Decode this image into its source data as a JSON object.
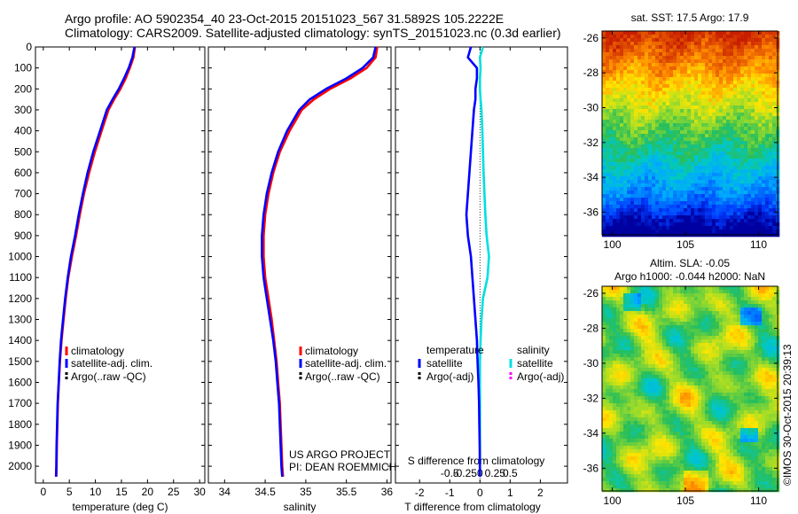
{
  "header": {
    "line1": "Argo profile: AO 5902354_40 23-Oct-2015 20151023_567 31.5892S 105.2222E",
    "line2": "Climatology: CARS2009. Satellite-adjusted climatology: synTS_20151023.nc (0.3d earlier)"
  },
  "colors": {
    "climatology": "#ff0000",
    "satellite": "#0000ff",
    "argo": "#000000",
    "satellite_salinity": "#00e0e0",
    "argo_salinity": "#ff00ff"
  },
  "chart_data": [
    {
      "type": "line",
      "id": "temperature",
      "xlabel": "temperature (deg C)",
      "xlim": [
        -1.5,
        31
      ],
      "ylim": [
        0,
        2080
      ],
      "y_inverted": true,
      "xticks": [
        0,
        5,
        10,
        15,
        20,
        25,
        30
      ],
      "yticks": [
        0,
        100,
        200,
        300,
        400,
        500,
        600,
        700,
        800,
        900,
        1000,
        1100,
        1200,
        1300,
        1400,
        1500,
        1600,
        1700,
        1800,
        1900,
        2000
      ],
      "legend": [
        "climatology",
        "satellite-adj. clim.",
        "Argo(..raw -QC)"
      ],
      "series": [
        {
          "name": "climatology",
          "color": "#ff0000",
          "x": [
            17.6,
            17.3,
            16.6,
            15.8,
            14.8,
            13.6,
            12.5,
            11.2,
            9.9,
            8.8,
            7.8,
            7.0,
            6.3,
            5.5,
            4.8,
            4.3,
            3.9,
            3.5,
            3.2,
            3.0,
            2.8,
            2.7,
            2.6,
            2.55,
            2.5
          ],
          "y": [
            0,
            50,
            100,
            150,
            200,
            250,
            300,
            400,
            500,
            600,
            700,
            800,
            900,
            1000,
            1100,
            1200,
            1300,
            1400,
            1500,
            1600,
            1700,
            1800,
            1900,
            2000,
            2050
          ]
        },
        {
          "name": "satellite-adj. clim.",
          "color": "#0000ff",
          "x": [
            17.5,
            17.1,
            16.4,
            15.5,
            14.5,
            13.3,
            12.2,
            10.9,
            9.6,
            8.5,
            7.6,
            6.8,
            6.1,
            5.3,
            4.7,
            4.2,
            3.8,
            3.4,
            3.15,
            2.95,
            2.75,
            2.65,
            2.55,
            2.5,
            2.45
          ],
          "y": [
            0,
            50,
            100,
            150,
            200,
            250,
            300,
            400,
            500,
            600,
            700,
            800,
            900,
            1000,
            1100,
            1200,
            1300,
            1400,
            1500,
            1600,
            1700,
            1800,
            1900,
            2000,
            2050
          ]
        }
      ]
    },
    {
      "type": "line",
      "id": "salinity",
      "xlabel": "salinity",
      "xlim": [
        33.8,
        36.05
      ],
      "ylim": [
        0,
        2080
      ],
      "y_inverted": true,
      "xticks": [
        34,
        34.5,
        35,
        35.5,
        36
      ],
      "legend": [
        "climatology",
        "satellite-adj. clim.",
        "Argo(..raw -QC)"
      ],
      "annotations": [
        "US ARGO PROJECT",
        "PI: DEAN ROEMMICH"
      ],
      "series": [
        {
          "name": "climatology",
          "color": "#ff0000",
          "x": [
            35.88,
            35.86,
            35.75,
            35.55,
            35.3,
            35.1,
            34.95,
            34.8,
            34.68,
            34.6,
            34.54,
            34.5,
            34.48,
            34.48,
            34.5,
            34.54,
            34.58,
            34.61,
            34.64,
            34.66,
            34.68,
            34.69,
            34.7,
            34.71,
            34.72
          ],
          "y": [
            0,
            50,
            100,
            150,
            200,
            250,
            300,
            400,
            500,
            600,
            700,
            800,
            900,
            1000,
            1100,
            1200,
            1300,
            1400,
            1500,
            1600,
            1700,
            1800,
            1900,
            2000,
            2050
          ]
        },
        {
          "name": "satellite-adj. clim.",
          "color": "#0000ff",
          "x": [
            35.86,
            35.83,
            35.7,
            35.5,
            35.25,
            35.05,
            34.92,
            34.77,
            34.66,
            34.58,
            34.52,
            34.48,
            34.46,
            34.46,
            34.48,
            34.52,
            34.56,
            34.6,
            34.63,
            34.65,
            34.67,
            34.68,
            34.69,
            34.7,
            34.71
          ],
          "y": [
            0,
            50,
            100,
            150,
            200,
            250,
            300,
            400,
            500,
            600,
            700,
            800,
            900,
            1000,
            1100,
            1200,
            1300,
            1400,
            1500,
            1600,
            1700,
            1800,
            1900,
            2000,
            2050
          ]
        }
      ]
    },
    {
      "type": "line",
      "id": "difference",
      "xlabel": "T difference from climatology",
      "xlabel_top": "S difference from climatology",
      "xlim": [
        -2.8,
        2.9
      ],
      "ylim": [
        0,
        2080
      ],
      "y_inverted": true,
      "xticks": [
        -2,
        -1,
        0,
        1,
        2
      ],
      "sticks": [
        -0.5,
        -0.25,
        0,
        0.25,
        0.5
      ],
      "stick_labels": [
        "-0.5",
        "-0.25",
        "0",
        "0.25",
        "0.5"
      ],
      "legend_headers": [
        "temperature",
        "salinity"
      ],
      "legend": [
        "satellite",
        "Argo(-adj)",
        "satellite",
        "Argo(-adj)"
      ],
      "series": [
        {
          "name": "satellite",
          "color": "#0000ff",
          "x": [
            -0.3,
            -0.4,
            -0.1,
            -0.1,
            -0.15,
            -0.15,
            -0.2,
            -0.25,
            -0.3,
            -0.35,
            -0.4,
            -0.45,
            -0.4,
            -0.3,
            -0.25,
            -0.2,
            -0.15,
            -0.1,
            -0.08,
            -0.05,
            -0.03,
            -0.02,
            -0.01,
            0
          ],
          "y": [
            0,
            50,
            100,
            150,
            200,
            250,
            300,
            400,
            500,
            600,
            700,
            800,
            900,
            1000,
            1100,
            1200,
            1300,
            1400,
            1500,
            1600,
            1700,
            1800,
            1900,
            2050
          ]
        },
        {
          "name": "satellite",
          "color": "#00e0e0",
          "x": [
            0.1,
            0.0,
            0.02,
            0.0,
            0.0,
            0.02,
            0.05,
            0.08,
            0.1,
            0.12,
            0.15,
            0.18,
            0.22,
            0.3,
            0.25,
            0.1,
            0.05,
            0.02,
            0.0,
            0.0,
            0.0,
            0.0,
            0.0,
            0.0
          ],
          "y": [
            0,
            50,
            100,
            150,
            200,
            250,
            300,
            400,
            500,
            600,
            700,
            800,
            900,
            1000,
            1100,
            1200,
            1300,
            1400,
            1500,
            1600,
            1700,
            1800,
            1900,
            2050
          ]
        }
      ]
    },
    {
      "type": "heatmap",
      "id": "sst_map",
      "title": "sat. SST: 17.5 Argo: 17.9",
      "xlim": [
        99.3,
        111.3
      ],
      "ylim": [
        -37.3,
        -25.6
      ],
      "xticks": [
        100,
        105,
        110
      ],
      "yticks": [
        -26,
        -28,
        -30,
        -32,
        -34,
        -36
      ]
    },
    {
      "type": "heatmap",
      "id": "sla_map",
      "title": "Altim. SLA: -0.05",
      "subtitle": "Argo h1000: -0.044 h2000: NaN",
      "xlim": [
        99.3,
        111.3
      ],
      "ylim": [
        -37.3,
        -25.6
      ],
      "xticks": [
        100,
        105,
        110
      ],
      "yticks": [
        -26,
        -28,
        -30,
        -32,
        -34,
        -36
      ]
    }
  ],
  "footer": {
    "credit": "©IMOS 30-Oct-2015 20:39:13"
  }
}
